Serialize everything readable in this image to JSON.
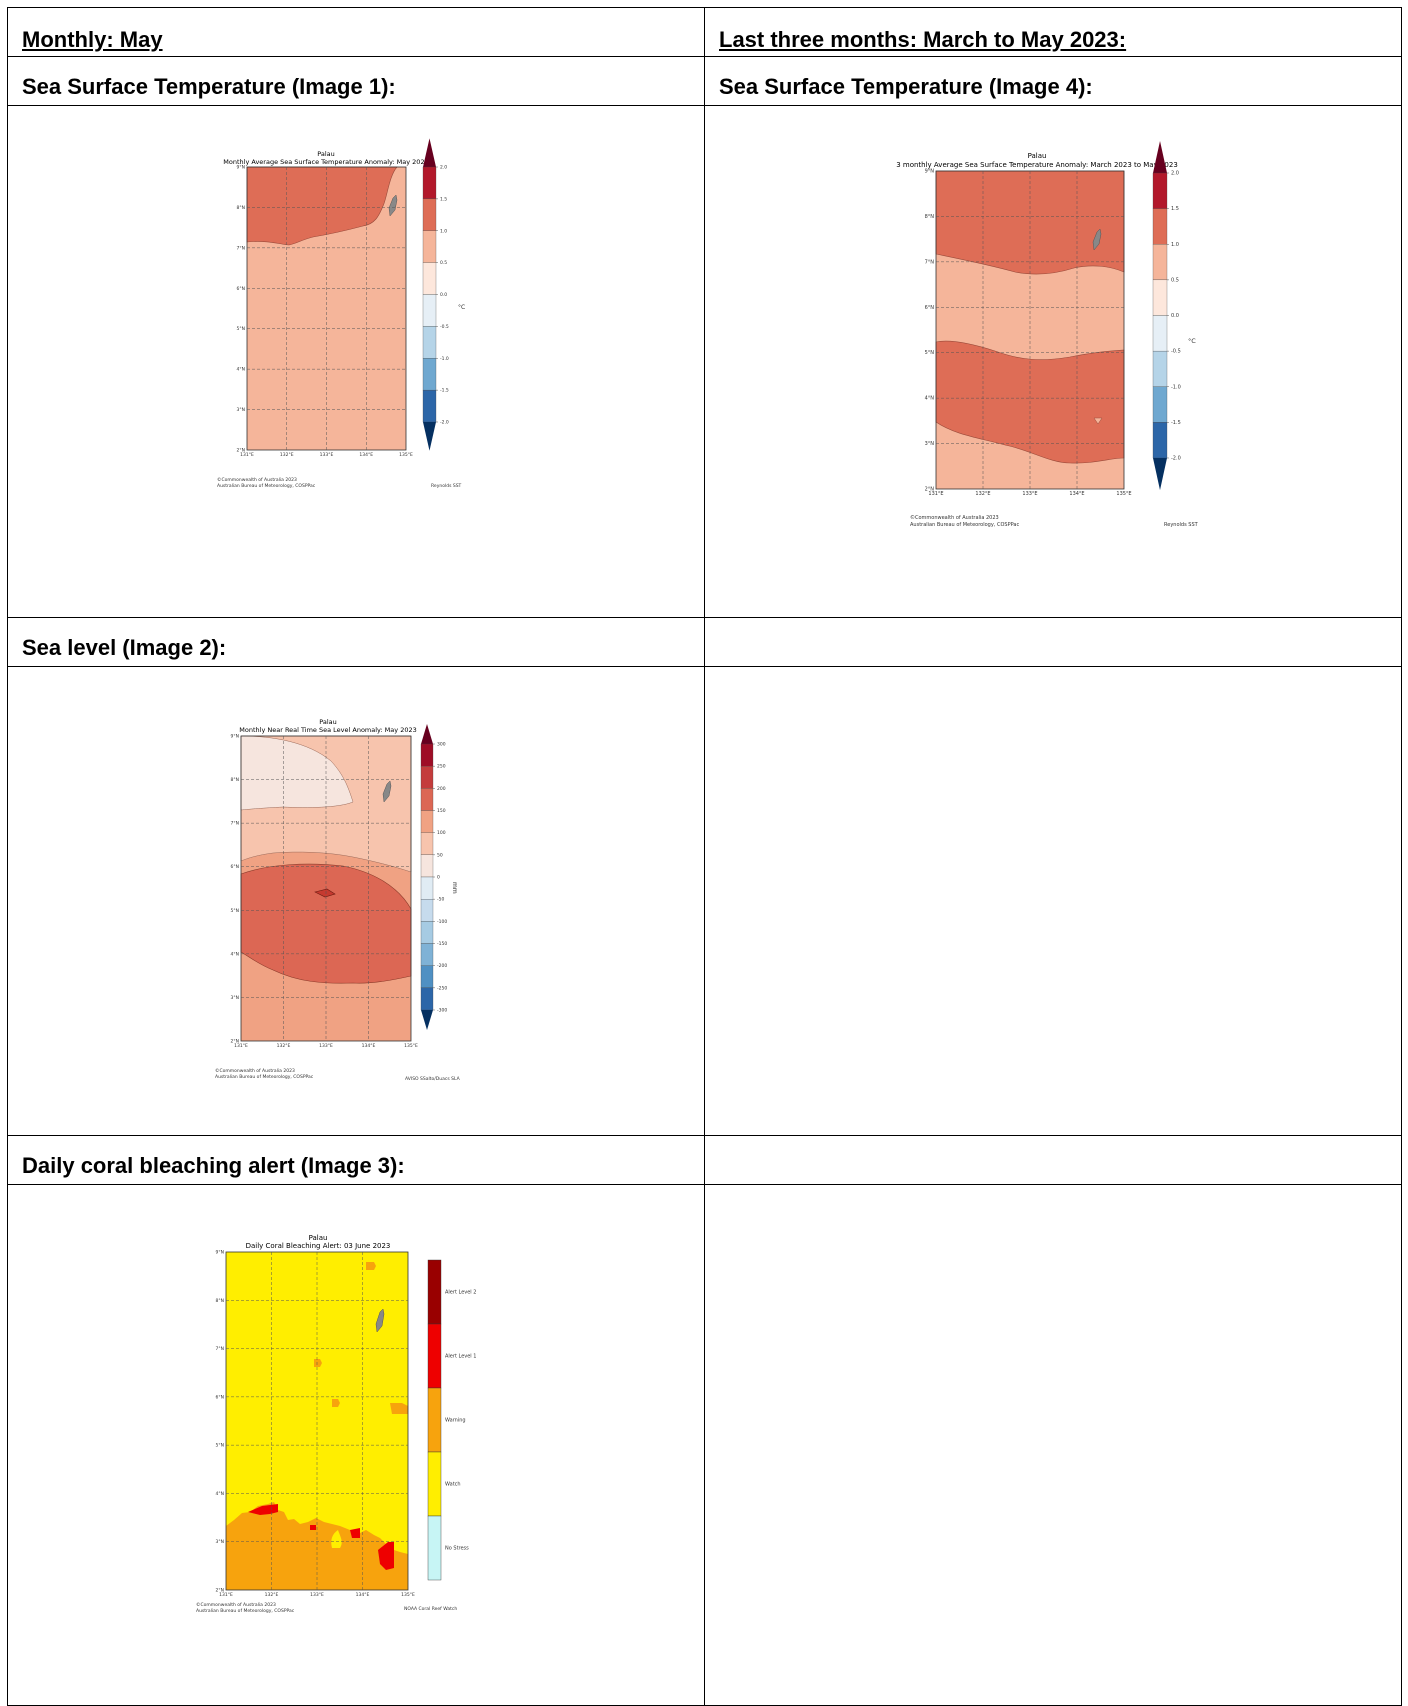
{
  "headers": {
    "left": "Monthly: May",
    "right": "Last three months: March to May 2023:"
  },
  "sections": {
    "sst_left": "Sea Surface Temperature (Image 1):",
    "sst_right": "Sea Surface Temperature (Image 4):",
    "sea_level": "Sea level (Image 2):",
    "coral": "Daily coral bleaching alert (Image 3):"
  },
  "figures": {
    "image1": {
      "location": "Palau",
      "title": "Monthly Average Sea Surface Temperature Anomaly: May 2023",
      "lat_labels": [
        "9°N",
        "8°N",
        "7°N",
        "6°N",
        "5°N",
        "4°N",
        "3°N",
        "2°N"
      ],
      "lon_labels": [
        "131°E",
        "132°E",
        "133°E",
        "134°E",
        "135°E"
      ],
      "colorbar_ticks": [
        "2.0",
        "1.5",
        "1.0",
        "0.5",
        "0.0",
        "-0.5",
        "-1.0",
        "-1.5",
        "-2.0"
      ],
      "unit": "°C",
      "credit1": "©Commonwealth of Australia 2023",
      "credit2": "Australian Bureau of Meteorology, COSPPac",
      "source": "Reynolds SST"
    },
    "image4": {
      "location": "Palau",
      "title": "3 monthly Average Sea Surface Temperature Anomaly: March 2023 to May 2023",
      "lat_labels": [
        "9°N",
        "8°N",
        "7°N",
        "6°N",
        "5°N",
        "4°N",
        "3°N",
        "2°N"
      ],
      "lon_labels": [
        "131°E",
        "132°E",
        "133°E",
        "134°E",
        "135°E"
      ],
      "colorbar_ticks": [
        "2.0",
        "1.5",
        "1.0",
        "0.5",
        "0.0",
        "-0.5",
        "-1.0",
        "-1.5",
        "-2.0"
      ],
      "unit": "°C",
      "credit1": "©Commonwealth of Australia 2023",
      "credit2": "Australian Bureau of Meteorology, COSPPac",
      "source": "Reynolds SST"
    },
    "image2": {
      "location": "Palau",
      "title": "Monthly Near Real Time Sea Level Anomaly: May 2023",
      "lat_labels": [
        "9°N",
        "8°N",
        "7°N",
        "6°N",
        "5°N",
        "4°N",
        "3°N",
        "2°N"
      ],
      "lon_labels": [
        "131°E",
        "132°E",
        "133°E",
        "134°E",
        "135°E"
      ],
      "colorbar_ticks": [
        "300",
        "250",
        "200",
        "150",
        "100",
        "50",
        "0",
        "-50",
        "-100",
        "-150",
        "-200",
        "-250",
        "-300"
      ],
      "unit": "mm",
      "credit1": "©Commonwealth of Australia 2023",
      "credit2": "Australian Bureau of Meteorology, COSPPac",
      "source": "AVISO SSalto/Duacs SLA"
    },
    "image3": {
      "location": "Palau",
      "title": "Daily Coral Bleaching Alert: 03 June 2023",
      "lat_labels": [
        "9°N",
        "8°N",
        "7°N",
        "6°N",
        "5°N",
        "4°N",
        "3°N",
        "2°N"
      ],
      "lon_labels": [
        "131°E",
        "132°E",
        "133°E",
        "134°E",
        "135°E"
      ],
      "legend": [
        "Alert Level 2",
        "Alert Level 1",
        "Warning",
        "Watch",
        "No Stress"
      ],
      "credit1": "©Commonwealth of Australia 2023",
      "credit2": "Australian Bureau of Meteorology, COSPPac",
      "source": "NOAA Coral Reef Watch"
    }
  },
  "colors": {
    "sst_dark": "#de6d56",
    "sst_light": "#f5b59a",
    "sl_vlight": "#f6e5de",
    "sl_light": "#f7c4ad",
    "sl_mid": "#f0a283",
    "sl_dark": "#dc6754",
    "coral_watch": "#ffee00",
    "coral_warning": "#f7a30d",
    "coral_alert1": "#ee0000",
    "coral_alert2": "#990000",
    "coral_nostress": "#c7f5f5"
  }
}
